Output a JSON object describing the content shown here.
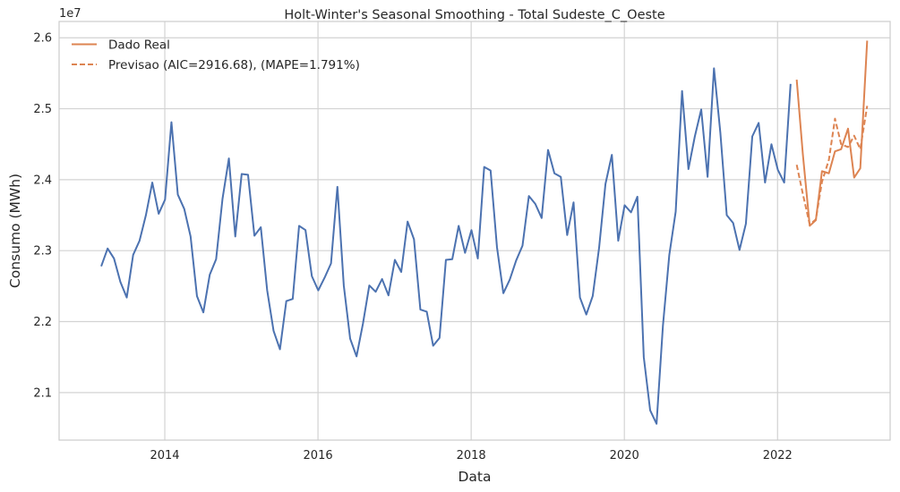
{
  "chart_data": {
    "type": "line",
    "title": "Holt-Winter's Seasonal Smoothing - Total Sudeste_C_Oeste",
    "xlabel": "Data",
    "ylabel": "Consumo (MWh)",
    "y_offset_label": "1e7",
    "y_scale": 10000000,
    "xlim": [
      2012.62,
      2023.47
    ],
    "ylim": [
      20.33,
      26.23
    ],
    "x_ticks": [
      {
        "value": 2014,
        "label": "2014"
      },
      {
        "value": 2016,
        "label": "2016"
      },
      {
        "value": 2018,
        "label": "2018"
      },
      {
        "value": 2020,
        "label": "2020"
      },
      {
        "value": 2022,
        "label": "2022"
      }
    ],
    "y_ticks": [
      {
        "value": 21.0,
        "label": "2.1"
      },
      {
        "value": 22.0,
        "label": "2.2"
      },
      {
        "value": 23.0,
        "label": "2.3"
      },
      {
        "value": 24.0,
        "label": "2.4"
      },
      {
        "value": 25.0,
        "label": "2.5"
      },
      {
        "value": 26.0,
        "label": "2.6"
      }
    ],
    "grid": true,
    "legend": {
      "position": "top-left"
    },
    "colors": {
      "train": "#4c72b0",
      "real": "#dd8452",
      "forecast": "#dd8452",
      "grid": "#d3d3d3",
      "spine": "#cccccc"
    },
    "series": [
      {
        "name": "Treino",
        "show_in_legend": false,
        "color": "#4c72b0",
        "style": "solid",
        "x_start": 2013.17,
        "step": 0.0833333,
        "values": [
          22.78,
          23.03,
          22.89,
          22.56,
          22.34,
          22.94,
          23.14,
          23.5,
          23.96,
          23.52,
          23.72,
          24.81,
          23.79,
          23.59,
          23.2,
          22.36,
          22.13,
          22.66,
          22.88,
          23.73,
          24.3,
          23.2,
          24.08,
          24.07,
          23.21,
          23.33,
          22.44,
          21.87,
          21.61,
          22.29,
          22.32,
          23.35,
          23.29,
          22.64,
          22.44,
          22.62,
          22.82,
          23.9,
          22.51,
          21.76,
          21.51,
          21.97,
          22.51,
          22.42,
          22.6,
          22.37,
          22.87,
          22.7,
          23.41,
          23.16,
          22.17,
          22.14,
          21.66,
          21.77,
          22.87,
          22.88,
          23.35,
          22.97,
          23.29,
          22.89,
          24.18,
          24.13,
          23.05,
          22.4,
          22.59,
          22.86,
          23.07,
          23.77,
          23.66,
          23.46,
          24.42,
          24.09,
          24.04,
          23.22,
          23.68,
          22.34,
          22.1,
          22.36,
          23.04,
          23.94,
          24.35,
          23.14,
          23.64,
          23.54,
          23.76,
          21.5,
          20.75,
          20.56,
          21.94,
          22.94,
          23.55,
          25.25,
          24.15,
          24.61,
          24.99,
          24.04,
          25.57,
          24.66,
          23.5,
          23.39,
          23.01,
          23.38,
          24.61,
          24.8,
          23.96,
          24.5,
          24.14,
          23.96,
          25.35
        ]
      },
      {
        "name": "Dado Real",
        "show_in_legend": true,
        "color": "#dd8452",
        "style": "solid",
        "x": [
          2022.25,
          2022.33,
          2022.42,
          2022.5,
          2022.58,
          2022.67,
          2022.75,
          2022.83,
          2022.92,
          2023.0,
          2023.08,
          2023.17
        ],
        "values": [
          25.41,
          24.36,
          23.35,
          23.43,
          24.12,
          24.09,
          24.4,
          24.43,
          24.72,
          24.03,
          24.16,
          25.96
        ]
      },
      {
        "name": "Previsao (AIC=2916.68), (MAPE=1.791%)",
        "show_in_legend": true,
        "color": "#dd8452",
        "style": "dashed",
        "x": [
          2022.25,
          2022.33,
          2022.42,
          2022.5,
          2022.58,
          2022.67,
          2022.75,
          2022.83,
          2022.92,
          2023.0,
          2023.08,
          2023.17
        ],
        "values": [
          24.21,
          23.8,
          23.37,
          23.44,
          23.97,
          24.28,
          24.86,
          24.5,
          24.46,
          24.62,
          24.43,
          25.04
        ]
      }
    ]
  }
}
